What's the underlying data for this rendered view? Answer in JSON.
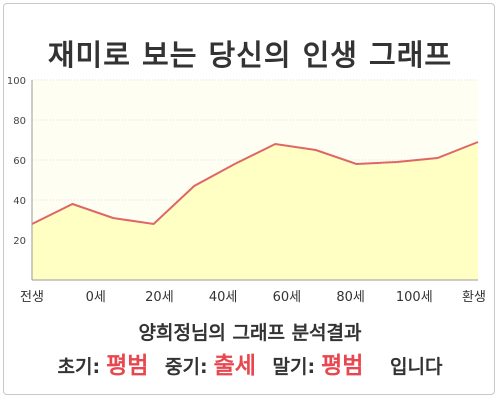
{
  "title": "재미로 보는 당신의 인생 그래프",
  "chart_data": {
    "type": "area",
    "title": "재미로 보는 당신의 인생 그래프",
    "xlabel": "",
    "ylabel": "",
    "x_ticks": [
      "전생",
      "0세",
      "20세",
      "40세",
      "60세",
      "80세",
      "100세",
      "환생"
    ],
    "y_ticks": [
      20,
      40,
      60,
      80,
      100
    ],
    "ylim": [
      0,
      100
    ],
    "grid": true,
    "fill_color": "#ffffc4",
    "line_color": "#e06666",
    "plot_bg": "#fffef2",
    "x": [
      "전생",
      "0세",
      "20세",
      "",
      "40세",
      "",
      "60세",
      "",
      "80세",
      "",
      "100세",
      "환생"
    ],
    "values": [
      28,
      38,
      31,
      28,
      47,
      58,
      68,
      65,
      58,
      59,
      61,
      69
    ]
  },
  "result": {
    "heading": "양희정님의 그래프 분석결과",
    "early_label": "초기:",
    "early_value": "평범",
    "mid_label": "중기:",
    "mid_value": "출세",
    "late_label": "말기:",
    "late_value": "평범",
    "ending": "입니다"
  }
}
